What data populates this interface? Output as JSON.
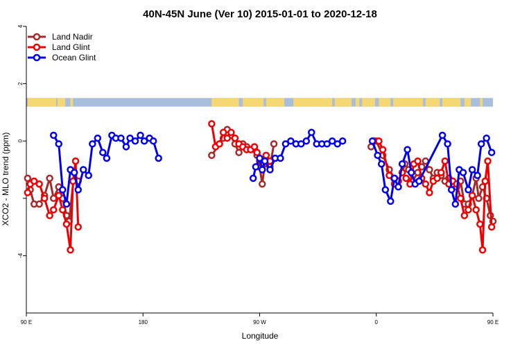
{
  "chart_data": {
    "type": "line",
    "title": "40N-45N June (Ver 10)   2015-01-01 to 2020-12-18",
    "xlabel": "Longitude",
    "ylabel": "XCO2 - MLO trend (ppm)",
    "xlim": [
      90,
      450
    ],
    "ylim": [
      -6,
      4
    ],
    "x_ticks": [
      {
        "value": 90,
        "label": "90 E"
      },
      {
        "value": 180,
        "label": "180"
      },
      {
        "value": 270,
        "label": "90 W"
      },
      {
        "value": 360,
        "label": "0"
      },
      {
        "value": 450,
        "label": "90 E"
      },
      {
        "value": 540,
        "label": "180"
      }
    ],
    "y_ticks": [
      {
        "value": -4,
        "label": "-4"
      },
      {
        "value": -2,
        "label": ""
      },
      {
        "value": 0,
        "label": "0"
      },
      {
        "value": 2,
        "label": "2"
      },
      {
        "value": 4,
        "label": "4"
      }
    ],
    "legend_position": "top-left",
    "series": [
      {
        "name": "Land Nadir",
        "color": "#a52a2a",
        "points": [
          [
            91,
            -1.3
          ],
          [
            93,
            -1.7
          ],
          [
            96,
            -2.2
          ],
          [
            100,
            -2.2
          ],
          [
            104,
            -1.9
          ],
          [
            108,
            -1.3
          ],
          [
            111,
            -2.0
          ],
          [
            115,
            -1.6
          ],
          [
            118,
            -2.0
          ],
          [
            121,
            -2.6
          ],
          [
            123,
            -2.8
          ],
          [
            127,
            -1.1
          ],
          [
            130,
            -1.4
          ],
          [
            233,
            -0.5
          ],
          [
            239,
            -0.1
          ],
          [
            242,
            0.1
          ],
          [
            245,
            0.4
          ],
          [
            248,
            0.2
          ],
          [
            251,
            -0.1
          ],
          [
            254,
            -0.4
          ],
          [
            257,
            -0.1
          ],
          [
            260,
            -0.2
          ],
          [
            263,
            -0.3
          ],
          [
            266,
            -0.3
          ],
          [
            268,
            -0.5
          ],
          [
            270,
            -0.9
          ],
          [
            272,
            -1.5
          ],
          [
            274,
            -0.8
          ],
          [
            278,
            -0.9
          ],
          [
            281,
            -0.1
          ],
          [
            356,
            -0.2
          ],
          [
            360,
            0.0
          ],
          [
            365,
            -0.5
          ],
          [
            370,
            -1.0
          ],
          [
            374,
            -1.3
          ],
          [
            377,
            -1.4
          ],
          [
            380,
            -1.1
          ],
          [
            382,
            -0.8
          ],
          [
            385,
            -1.0
          ],
          [
            388,
            -1.4
          ],
          [
            392,
            -1.1
          ],
          [
            395,
            -0.9
          ],
          [
            398,
            -0.7
          ],
          [
            401,
            -1.0
          ],
          [
            404,
            -1.3
          ],
          [
            407,
            -1.1
          ],
          [
            410,
            -1.2
          ],
          [
            413,
            -1.4
          ],
          [
            416,
            -1.3
          ],
          [
            419,
            -1.5
          ],
          [
            422,
            -1.6
          ],
          [
            425,
            -1.4
          ],
          [
            428,
            -2.2
          ],
          [
            431,
            -2.2
          ],
          [
            434,
            -1.9
          ],
          [
            437,
            -1.3
          ],
          [
            439,
            -2.0
          ],
          [
            442,
            -1.6
          ],
          [
            445,
            -2.0
          ],
          [
            448,
            -2.6
          ],
          [
            450,
            -2.8
          ]
        ]
      },
      {
        "name": "Land Glint",
        "color": "#ee0000",
        "points": [
          [
            91,
            -1.8
          ],
          [
            93,
            -1.5
          ],
          [
            96,
            -1.4
          ],
          [
            100,
            -1.5
          ],
          [
            104,
            -2.0
          ],
          [
            108,
            -2.6
          ],
          [
            111,
            -2.4
          ],
          [
            115,
            -1.9
          ],
          [
            118,
            -2.4
          ],
          [
            121,
            -2.9
          ],
          [
            124,
            -3.8
          ],
          [
            126,
            -1.4
          ],
          [
            128,
            -0.7
          ],
          [
            130,
            -3.0
          ],
          [
            233,
            0.6
          ],
          [
            236,
            -0.2
          ],
          [
            239,
            -0.1
          ],
          [
            242,
            0.3
          ],
          [
            245,
            0.1
          ],
          [
            248,
            0.3
          ],
          [
            251,
            0.1
          ],
          [
            254,
            -0.1
          ],
          [
            257,
            -0.2
          ],
          [
            260,
            -0.3
          ],
          [
            263,
            -0.3
          ],
          [
            266,
            -0.2
          ],
          [
            268,
            -0.4
          ],
          [
            270,
            -0.7
          ],
          [
            272,
            -0.8
          ],
          [
            275,
            -0.5
          ],
          [
            278,
            -0.7
          ],
          [
            358,
            0.0
          ],
          [
            362,
            0.0
          ],
          [
            365,
            -0.3
          ],
          [
            370,
            -1.2
          ],
          [
            374,
            -1.5
          ],
          [
            377,
            -1.4
          ],
          [
            380,
            -1.1
          ],
          [
            383,
            -1.3
          ],
          [
            386,
            -1.5
          ],
          [
            389,
            -0.8
          ],
          [
            392,
            -0.7
          ],
          [
            395,
            -1.3
          ],
          [
            398,
            -1.5
          ],
          [
            401,
            -1.8
          ],
          [
            404,
            -1.4
          ],
          [
            407,
            -1.3
          ],
          [
            410,
            -1.1
          ],
          [
            413,
            -0.7
          ],
          [
            416,
            -1.5
          ],
          [
            419,
            -1.4
          ],
          [
            422,
            -1.5
          ],
          [
            425,
            -2.0
          ],
          [
            428,
            -2.6
          ],
          [
            431,
            -2.4
          ],
          [
            434,
            -1.9
          ],
          [
            437,
            -2.4
          ],
          [
            440,
            -2.9
          ],
          [
            442,
            -3.8
          ],
          [
            444,
            -1.4
          ],
          [
            446,
            -0.7
          ],
          [
            449,
            -3.0
          ]
        ]
      },
      {
        "name": "Ocean Glint",
        "color": "#0000ee",
        "points": [
          [
            111,
            0.2
          ],
          [
            115,
            -0.1
          ],
          [
            118,
            -1.7
          ],
          [
            121,
            -2.2
          ],
          [
            124,
            -1.0
          ],
          [
            127,
            -1.1
          ],
          [
            130,
            -1.7
          ],
          [
            134,
            -1.0
          ],
          [
            138,
            -1.2
          ],
          [
            141,
            -0.1
          ],
          [
            145,
            0.1
          ],
          [
            149,
            -0.4
          ],
          [
            152,
            -0.6
          ],
          [
            156,
            0.2
          ],
          [
            159,
            0.1
          ],
          [
            163,
            0.1
          ],
          [
            167,
            -0.2
          ],
          [
            170,
            0.1
          ],
          [
            174,
            0.0
          ],
          [
            178,
            0.2
          ],
          [
            181,
            0.0
          ],
          [
            185,
            0.1
          ],
          [
            188,
            0.0
          ],
          [
            192,
            -0.6
          ],
          [
            265,
            -1.3
          ],
          [
            267,
            -0.9
          ],
          [
            270,
            -0.6
          ],
          [
            272,
            -1.0
          ],
          [
            274,
            -0.7
          ],
          [
            278,
            -1.0
          ],
          [
            282,
            -0.6
          ],
          [
            286,
            -0.6
          ],
          [
            290,
            -0.1
          ],
          [
            294,
            0.0
          ],
          [
            298,
            -0.1
          ],
          [
            302,
            -0.1
          ],
          [
            306,
            0.0
          ],
          [
            310,
            0.3
          ],
          [
            314,
            -0.1
          ],
          [
            318,
            -0.1
          ],
          [
            322,
            -0.1
          ],
          [
            326,
            0.0
          ],
          [
            330,
            -0.1
          ],
          [
            334,
            0.0
          ],
          [
            357,
            0.0
          ],
          [
            361,
            -0.5
          ],
          [
            364,
            -0.8
          ],
          [
            367,
            -1.7
          ],
          [
            371,
            -2.1
          ],
          [
            374,
            -1.3
          ],
          [
            377,
            -1.6
          ],
          [
            380,
            -0.8
          ],
          [
            384,
            -0.3
          ],
          [
            387,
            -1.1
          ],
          [
            390,
            -1.5
          ],
          [
            393,
            -1.4
          ],
          [
            411,
            0.2
          ],
          [
            415,
            -0.1
          ],
          [
            418,
            -1.7
          ],
          [
            421,
            -2.2
          ],
          [
            424,
            -1.0
          ],
          [
            427,
            -1.1
          ],
          [
            431,
            -1.7
          ],
          [
            434,
            -1.0
          ],
          [
            438,
            -1.2
          ],
          [
            441,
            -0.1
          ],
          [
            445,
            0.1
          ],
          [
            449,
            -0.4
          ]
        ]
      }
    ],
    "background_band": {
      "y_range": [
        1.2,
        1.5
      ],
      "ocean_color": "#a8bedd",
      "land_color": "#f5d873",
      "land_segments": [
        [
          91,
          113
        ],
        [
          114,
          120
        ],
        [
          124,
          126
        ],
        [
          233,
          254
        ],
        [
          257,
          273
        ],
        [
          275,
          289
        ],
        [
          296,
          326
        ],
        [
          328,
          341
        ],
        [
          344,
          347
        ],
        [
          349,
          359
        ],
        [
          362,
          371
        ],
        [
          373,
          396
        ],
        [
          398,
          409
        ],
        [
          411,
          425
        ],
        [
          428,
          433
        ],
        [
          440,
          442
        ]
      ]
    }
  }
}
